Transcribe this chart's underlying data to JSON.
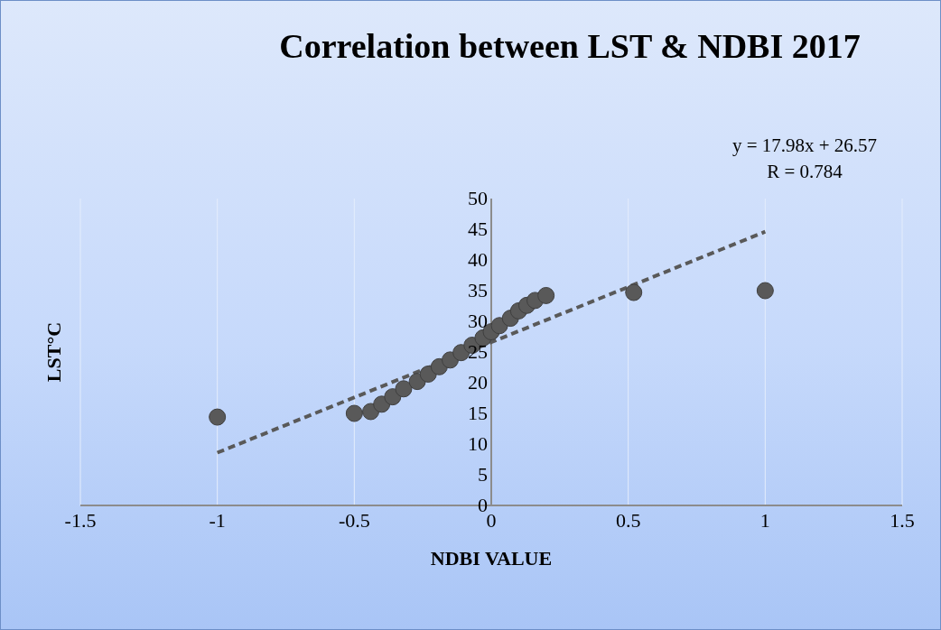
{
  "chart_data": {
    "type": "scatter",
    "title": "Correlation between LST & NDBI 2017",
    "xlabel": "NDBI VALUE",
    "ylabel": "LST°C",
    "annotations": [
      "y = 17.98x + 26.57",
      "R = 0.784"
    ],
    "xlim": [
      -1.5,
      1.5
    ],
    "xticks": [
      -1.5,
      -1,
      -0.5,
      0,
      0.5,
      1,
      1.5
    ],
    "ylim": [
      0,
      50
    ],
    "yticks": [
      0,
      5,
      10,
      15,
      20,
      25,
      30,
      35,
      40,
      45,
      50
    ],
    "grid": "x",
    "marker": "circle",
    "legend": false,
    "series": [
      {
        "color": "#595959",
        "x": [
          -1,
          -0.5,
          -0.44,
          -0.4,
          -0.36,
          -0.32,
          -0.27,
          -0.23,
          -0.19,
          -0.15,
          -0.11,
          -0.07,
          -0.03,
          0,
          0.03,
          0.07,
          0.1,
          0.13,
          0.16,
          0.2,
          0.52,
          1
        ],
        "values": [
          14.4,
          15,
          15.3,
          16.5,
          17.7,
          19,
          20.2,
          21.4,
          22.6,
          23.7,
          24.9,
          26.1,
          27.3,
          28.3,
          29.3,
          30.5,
          31.7,
          32.6,
          33.4,
          34.2,
          34.7,
          35
        ]
      },
      {
        "type": "line",
        "color": "#595959",
        "line_style": "dashed",
        "marker": "none",
        "x": [
          -1,
          1
        ],
        "values": [
          8.6,
          44.6
        ]
      }
    ]
  }
}
